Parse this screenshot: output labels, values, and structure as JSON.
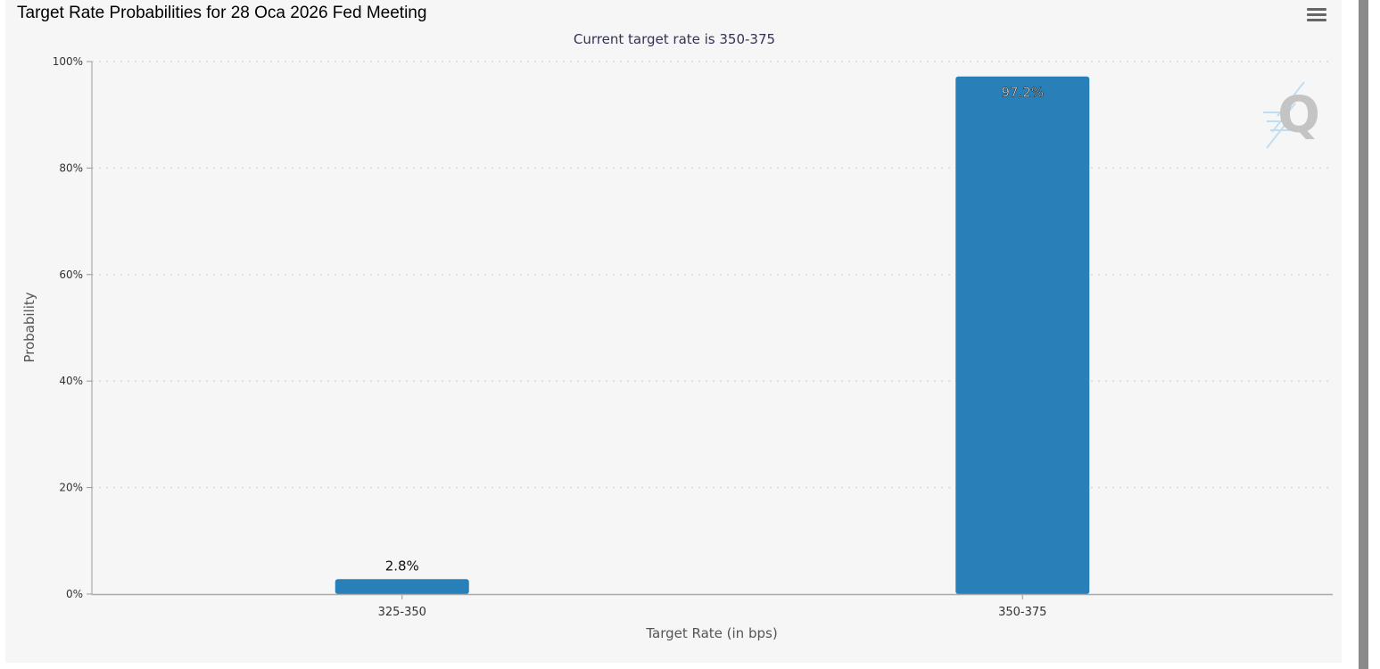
{
  "window": {
    "heading": "Target Rate Probabilities for 28 Oca 2026 Fed Meeting"
  },
  "toolbar": {
    "menu_icon": "hamburger-menu-icon"
  },
  "watermark": {
    "icon": "q-logo-icon",
    "letter": "Q"
  },
  "colors": {
    "bar": "#2980b9",
    "grid": "#d8d8d8",
    "axis": "#999999",
    "panel": "#f6f6f6",
    "subtitle": "#333355"
  },
  "chart_data": {
    "type": "bar",
    "title": "",
    "subtitle": "Current target rate is 350-375",
    "categories": [
      "325-350",
      "350-375"
    ],
    "values": [
      2.8,
      97.2
    ],
    "value_labels": [
      "2.8%",
      "97.2%"
    ],
    "xlabel": "Target Rate (in bps)",
    "ylabel": "Probability",
    "ylim": [
      0,
      100
    ],
    "yticks": [
      0,
      20,
      40,
      60,
      80,
      100
    ],
    "ytick_labels": [
      "0%",
      "20%",
      "40%",
      "60%",
      "80%",
      "100%"
    ],
    "grid": true,
    "legend": "none"
  }
}
